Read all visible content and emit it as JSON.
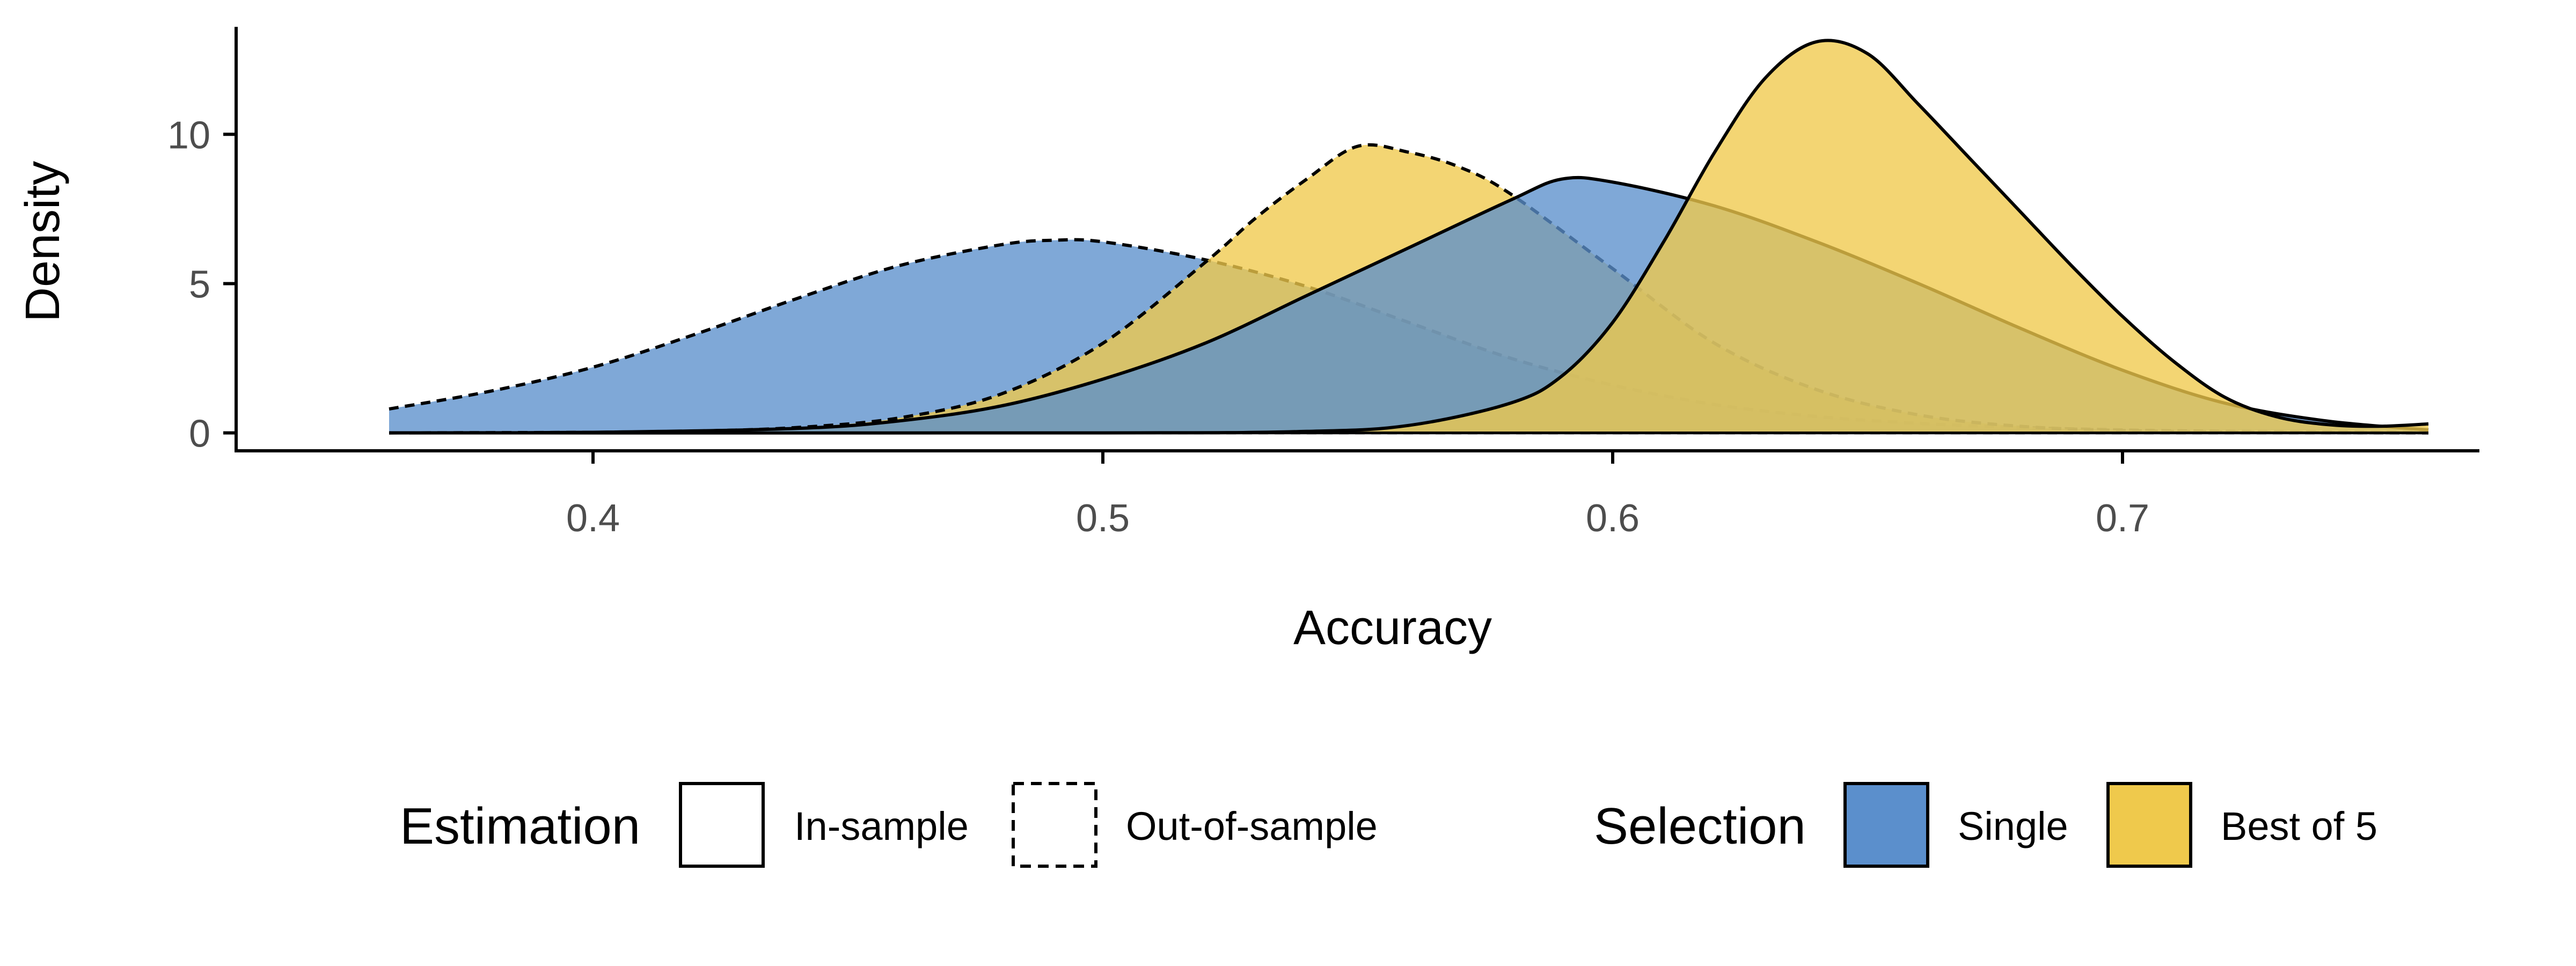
{
  "chart_data": {
    "type": "area",
    "title": "",
    "xlabel": "Accuracy",
    "ylabel": "Density",
    "xlim": [
      0.33,
      0.77
    ],
    "ylim": [
      -0.6,
      13.6
    ],
    "x_ticks": [
      0.4,
      0.5,
      0.6,
      0.7
    ],
    "x_tick_labels": [
      "0.4",
      "0.5",
      "0.6",
      "0.7"
    ],
    "y_ticks": [
      0,
      5,
      10
    ],
    "y_tick_labels": [
      "0",
      "5",
      "10"
    ],
    "grid": false,
    "legend_position": "bottom",
    "colors": {
      "single": "#5b8fcc",
      "best_of_5": "#efc94c"
    },
    "series": [
      {
        "selection": "Single",
        "estimation": "Out-of-sample",
        "line_style": "dashed",
        "x": [
          0.36,
          0.38,
          0.4,
          0.42,
          0.44,
          0.46,
          0.48,
          0.49,
          0.5,
          0.52,
          0.54,
          0.56,
          0.58,
          0.6,
          0.62,
          0.64,
          0.66,
          0.68,
          0.7,
          0.72,
          0.74,
          0.76
        ],
        "y": [
          0.8,
          1.4,
          2.2,
          3.3,
          4.5,
          5.6,
          6.3,
          6.45,
          6.4,
          5.8,
          4.9,
          3.7,
          2.5,
          1.6,
          0.95,
          0.55,
          0.32,
          0.18,
          0.1,
          0.05,
          0.03,
          0.02
        ]
      },
      {
        "selection": "Best of 5",
        "estimation": "Out-of-sample",
        "line_style": "dashed",
        "x": [
          0.36,
          0.4,
          0.42,
          0.44,
          0.46,
          0.48,
          0.5,
          0.52,
          0.53,
          0.54,
          0.55,
          0.56,
          0.57,
          0.58,
          0.6,
          0.62,
          0.64,
          0.66,
          0.68,
          0.7,
          0.72,
          0.74,
          0.76
        ],
        "y": [
          0.0,
          0.02,
          0.06,
          0.18,
          0.5,
          1.3,
          3.0,
          5.7,
          7.2,
          8.5,
          9.6,
          9.4,
          8.9,
          8.0,
          5.5,
          3.0,
          1.45,
          0.6,
          0.22,
          0.08,
          0.03,
          0.01,
          0.0
        ]
      },
      {
        "selection": "Single",
        "estimation": "In-sample",
        "line_style": "solid",
        "x": [
          0.36,
          0.4,
          0.44,
          0.46,
          0.48,
          0.5,
          0.52,
          0.54,
          0.56,
          0.58,
          0.59,
          0.6,
          0.62,
          0.64,
          0.66,
          0.68,
          0.7,
          0.72,
          0.74,
          0.76
        ],
        "y": [
          0.0,
          0.02,
          0.15,
          0.4,
          0.9,
          1.8,
          3.0,
          4.6,
          6.2,
          7.8,
          8.5,
          8.4,
          7.6,
          6.4,
          5.0,
          3.5,
          2.1,
          1.0,
          0.4,
          0.1
        ]
      },
      {
        "selection": "Best of 5",
        "estimation": "In-sample",
        "line_style": "solid",
        "x": [
          0.36,
          0.5,
          0.54,
          0.56,
          0.58,
          0.59,
          0.6,
          0.61,
          0.62,
          0.63,
          0.64,
          0.65,
          0.66,
          0.67,
          0.68,
          0.69,
          0.7,
          0.71,
          0.72,
          0.73,
          0.74,
          0.75,
          0.76
        ],
        "y": [
          0.0,
          0.0,
          0.05,
          0.25,
          1.0,
          1.9,
          3.7,
          6.4,
          9.4,
          11.9,
          13.1,
          12.7,
          11.0,
          9.2,
          7.4,
          5.6,
          3.9,
          2.4,
          1.2,
          0.55,
          0.28,
          0.22,
          0.3
        ]
      }
    ]
  },
  "legend": {
    "estimation": {
      "title": "Estimation",
      "items": [
        {
          "label": "In-sample",
          "line_style": "solid"
        },
        {
          "label": "Out-of-sample",
          "line_style": "dashed"
        }
      ]
    },
    "selection": {
      "title": "Selection",
      "items": [
        {
          "label": "Single",
          "color": "#5b8fcc"
        },
        {
          "label": "Best of 5",
          "color": "#efc94c"
        }
      ]
    }
  }
}
